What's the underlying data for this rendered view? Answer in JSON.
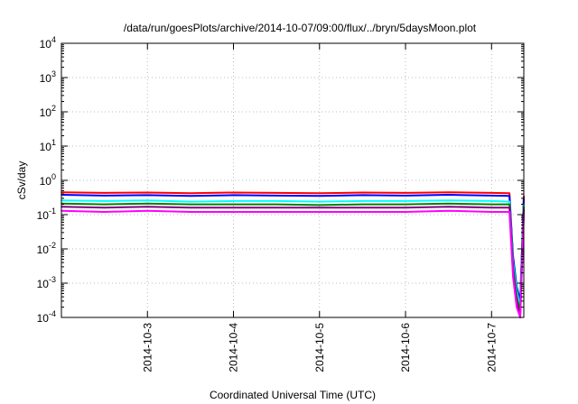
{
  "chart_data": {
    "type": "line",
    "title": "/data/run/goesPlots/archive/2014-10-07/09:00/flux/../bryn/5daysMoon.plot",
    "xlabel": "Coordinated Universal Time (UTC)",
    "ylabel": "cSv/day",
    "yscale": "log",
    "ylim": [
      0.0001,
      10000
    ],
    "xlim": [
      "2014-10-02T00:00",
      "2014-10-07T09:00"
    ],
    "grid": true,
    "legend": "none",
    "y_ticks": [
      {
        "base": "10",
        "exp": "-4"
      },
      {
        "base": "10",
        "exp": "-3"
      },
      {
        "base": "10",
        "exp": "-2"
      },
      {
        "base": "10",
        "exp": "-1"
      },
      {
        "base": "10",
        "exp": "0"
      },
      {
        "base": "10",
        "exp": "1"
      },
      {
        "base": "10",
        "exp": "2"
      },
      {
        "base": "10",
        "exp": "3"
      },
      {
        "base": "10",
        "exp": "4"
      }
    ],
    "x_ticks": [
      "2014-10-3",
      "2014-10-4",
      "2014-10-5",
      "2014-10-6",
      "2014-10-7"
    ],
    "series": [
      {
        "color": "#ff0000",
        "x": [
          "2014-10-02T00:00",
          "2014-10-02T12:00",
          "2014-10-03T00:00",
          "2014-10-03T12:00",
          "2014-10-04T00:00",
          "2014-10-04T12:00",
          "2014-10-05T00:00",
          "2014-10-05T12:00",
          "2014-10-06T00:00",
          "2014-10-06T12:00",
          "2014-10-07T00:00",
          "2014-10-07T05:00",
          "2014-10-07T06:00",
          "2014-10-07T07:00",
          "2014-10-07T08:00",
          "2014-10-07T09:00"
        ],
        "y": [
          0.45,
          0.43,
          0.44,
          0.42,
          0.44,
          0.43,
          0.42,
          0.44,
          0.43,
          0.45,
          0.43,
          0.42,
          0.005,
          0.0005,
          0.0002,
          0.35
        ]
      },
      {
        "color": "#0000ff",
        "x": [
          "2014-10-02T00:00",
          "2014-10-02T12:00",
          "2014-10-03T00:00",
          "2014-10-03T12:00",
          "2014-10-04T00:00",
          "2014-10-04T12:00",
          "2014-10-05T00:00",
          "2014-10-05T12:00",
          "2014-10-06T00:00",
          "2014-10-06T12:00",
          "2014-10-07T00:00",
          "2014-10-07T05:00",
          "2014-10-07T06:00",
          "2014-10-07T07:00",
          "2014-10-07T08:00",
          "2014-10-07T09:00"
        ],
        "y": [
          0.38,
          0.36,
          0.37,
          0.35,
          0.37,
          0.36,
          0.35,
          0.37,
          0.36,
          0.38,
          0.36,
          0.35,
          0.006,
          0.0008,
          0.0003,
          0.3
        ]
      },
      {
        "color": "#00ffff",
        "x": [
          "2014-10-02T00:00",
          "2014-10-02T12:00",
          "2014-10-03T00:00",
          "2014-10-03T12:00",
          "2014-10-04T00:00",
          "2014-10-04T12:00",
          "2014-10-05T00:00",
          "2014-10-05T12:00",
          "2014-10-06T00:00",
          "2014-10-06T12:00",
          "2014-10-07T00:00",
          "2014-10-07T05:00",
          "2014-10-07T06:00",
          "2014-10-07T07:00",
          "2014-10-07T08:00",
          "2014-10-07T09:00"
        ],
        "y": [
          0.26,
          0.25,
          0.26,
          0.24,
          0.25,
          0.25,
          0.24,
          0.25,
          0.25,
          0.26,
          0.25,
          0.24,
          0.004,
          0.0006,
          0.0002,
          0.2
        ]
      },
      {
        "color": "#008000",
        "x": [
          "2014-10-02T00:00",
          "2014-10-02T12:00",
          "2014-10-03T00:00",
          "2014-10-03T12:00",
          "2014-10-04T00:00",
          "2014-10-04T12:00",
          "2014-10-05T00:00",
          "2014-10-05T12:00",
          "2014-10-06T00:00",
          "2014-10-06T12:00",
          "2014-10-07T00:00",
          "2014-10-07T05:00",
          "2014-10-07T06:00",
          "2014-10-07T07:00",
          "2014-10-07T08:00",
          "2014-10-07T09:00"
        ],
        "y": [
          0.21,
          0.2,
          0.21,
          0.2,
          0.2,
          0.2,
          0.19,
          0.2,
          0.2,
          0.21,
          0.2,
          0.2,
          0.003,
          0.0004,
          0.00015,
          0.17
        ]
      },
      {
        "color": "#800080",
        "x": [
          "2014-10-02T00:00",
          "2014-10-02T12:00",
          "2014-10-03T00:00",
          "2014-10-03T12:00",
          "2014-10-04T00:00",
          "2014-10-04T12:00",
          "2014-10-05T00:00",
          "2014-10-05T12:00",
          "2014-10-06T00:00",
          "2014-10-06T12:00",
          "2014-10-07T00:00",
          "2014-10-07T05:00",
          "2014-10-07T06:00",
          "2014-10-07T07:00",
          "2014-10-07T08:00",
          "2014-10-07T09:00"
        ],
        "y": [
          0.17,
          0.16,
          0.17,
          0.16,
          0.16,
          0.16,
          0.16,
          0.16,
          0.16,
          0.17,
          0.16,
          0.16,
          0.002,
          0.0003,
          0.0001,
          0.14
        ]
      },
      {
        "color": "#ff00ff",
        "x": [
          "2014-10-02T00:00",
          "2014-10-02T12:00",
          "2014-10-03T00:00",
          "2014-10-03T12:00",
          "2014-10-04T00:00",
          "2014-10-04T12:00",
          "2014-10-05T00:00",
          "2014-10-05T12:00",
          "2014-10-06T00:00",
          "2014-10-06T12:00",
          "2014-10-07T00:00",
          "2014-10-07T05:00",
          "2014-10-07T06:00",
          "2014-10-07T07:00",
          "2014-10-07T08:00",
          "2014-10-07T09:00"
        ],
        "y": [
          0.13,
          0.12,
          0.13,
          0.12,
          0.12,
          0.12,
          0.12,
          0.12,
          0.12,
          0.13,
          0.12,
          0.12,
          0.0015,
          0.0002,
          0.0001,
          0.1
        ]
      }
    ]
  }
}
